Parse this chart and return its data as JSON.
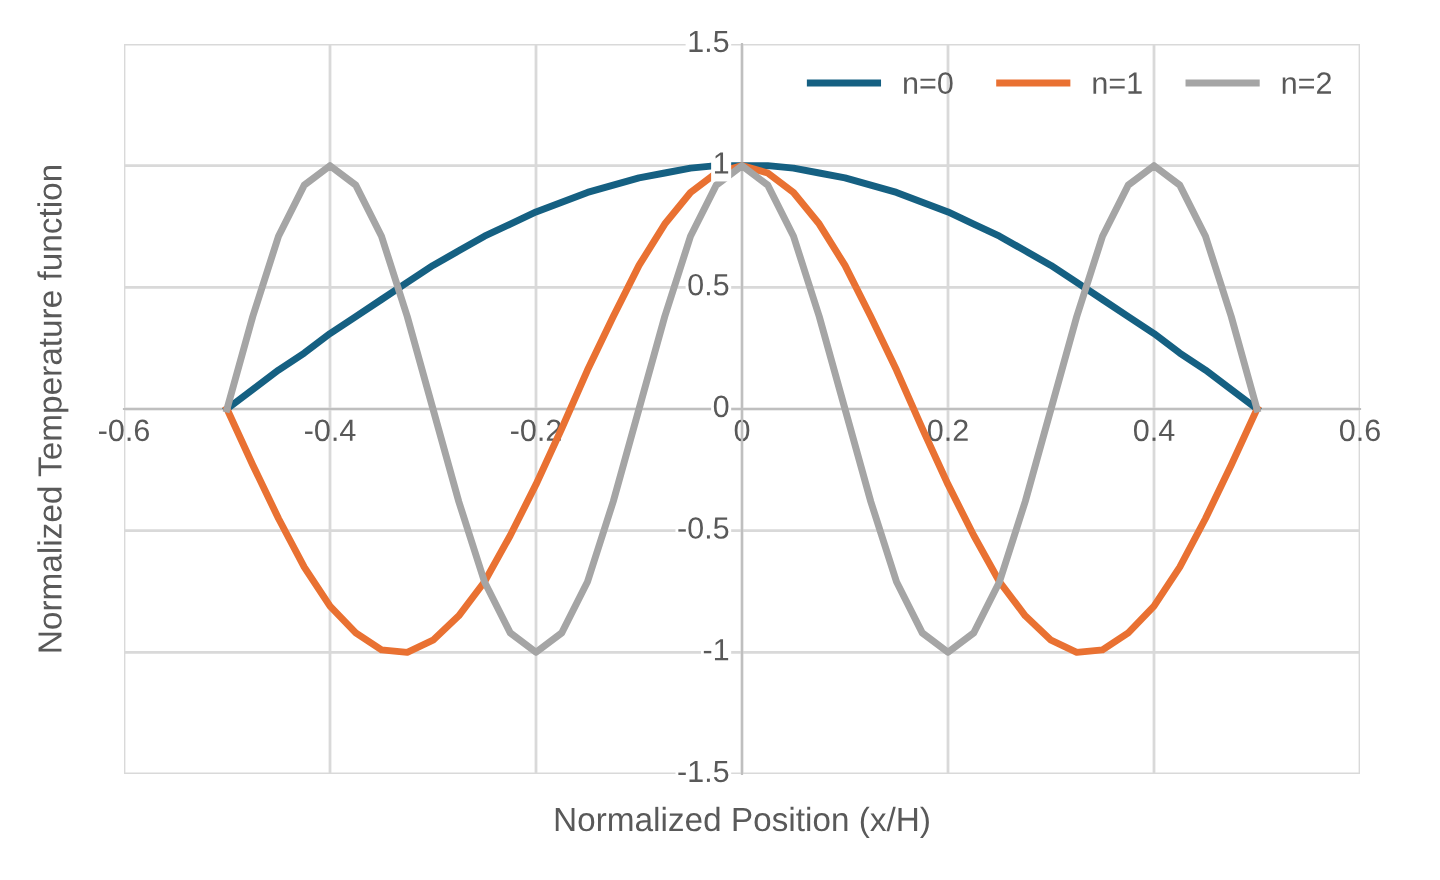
{
  "chart_data": {
    "type": "line",
    "xlabel": "Normalized Position (x/H)",
    "ylabel": "Normalized Temperature function",
    "x": [
      -0.5,
      -0.475,
      -0.45,
      -0.425,
      -0.4,
      -0.375,
      -0.35,
      -0.325,
      -0.3,
      -0.275,
      -0.25,
      -0.225,
      -0.2,
      -0.175,
      -0.15,
      -0.125,
      -0.1,
      -0.075,
      -0.05,
      -0.025,
      0,
      0.025,
      0.05,
      0.075,
      0.1,
      0.125,
      0.15,
      0.175,
      0.2,
      0.225,
      0.25,
      0.275,
      0.3,
      0.325,
      0.35,
      0.375,
      0.4,
      0.425,
      0.45,
      0.475,
      0.5
    ],
    "series": [
      {
        "name": "n=0",
        "color": "#156082",
        "values": [
          0,
          0.08,
          0.16,
          0.23,
          0.31,
          0.38,
          0.45,
          0.52,
          0.59,
          0.65,
          0.71,
          0.76,
          0.81,
          0.85,
          0.89,
          0.92,
          0.95,
          0.97,
          0.99,
          1.0,
          1,
          1.0,
          0.99,
          0.97,
          0.95,
          0.92,
          0.89,
          0.85,
          0.81,
          0.76,
          0.71,
          0.65,
          0.59,
          0.52,
          0.45,
          0.38,
          0.31,
          0.23,
          0.16,
          0.08,
          0
        ]
      },
      {
        "name": "n=1",
        "color": "#e97132",
        "values": [
          0,
          -0.23,
          -0.45,
          -0.65,
          -0.81,
          -0.92,
          -0.99,
          -1.0,
          -0.95,
          -0.85,
          -0.71,
          -0.52,
          -0.31,
          -0.08,
          0.16,
          0.38,
          0.59,
          0.76,
          0.89,
          0.97,
          1,
          0.97,
          0.89,
          0.76,
          0.59,
          0.38,
          0.16,
          -0.08,
          -0.31,
          -0.52,
          -0.71,
          -0.85,
          -0.95,
          -1.0,
          -0.99,
          -0.92,
          -0.81,
          -0.65,
          -0.45,
          -0.23,
          0
        ]
      },
      {
        "name": "n=2",
        "color": "#a5a5a5",
        "values": [
          0,
          0.38,
          0.71,
          0.92,
          1,
          0.92,
          0.71,
          0.38,
          0,
          -0.38,
          -0.71,
          -0.92,
          -1,
          -0.92,
          -0.71,
          -0.38,
          0,
          0.38,
          0.71,
          0.92,
          1,
          0.92,
          0.71,
          0.38,
          0,
          -0.38,
          -0.71,
          -0.92,
          -1,
          -0.92,
          -0.71,
          -0.38,
          0,
          0.38,
          0.71,
          0.92,
          1,
          0.92,
          0.71,
          0.38,
          0
        ]
      }
    ],
    "xlim": [
      -0.6,
      0.6
    ],
    "xticks": [
      -0.6,
      -0.4,
      -0.2,
      0,
      0.2,
      0.4,
      0.6
    ],
    "ylim": [
      -1.5,
      1.5
    ],
    "yticks": [
      -1.5,
      -1,
      -0.5,
      0,
      0.5,
      1,
      1.5
    ],
    "grid": true,
    "legend": "top right",
    "marker": "none",
    "line_style": "solid"
  }
}
